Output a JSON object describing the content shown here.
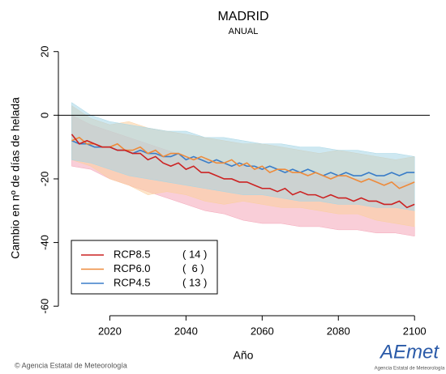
{
  "chart_data": {
    "type": "line",
    "title": "MADRID",
    "subtitle": "ANUAL",
    "x_label": "Año",
    "y_label": "Cambio en nº de días de helada",
    "xlim": [
      2006.5,
      2104
    ],
    "ylim": [
      -63,
      24
    ],
    "xticks": [
      2020,
      2040,
      2060,
      2080,
      2100
    ],
    "yticks": [
      -60,
      -40,
      -20,
      0,
      20
    ],
    "hline": 0,
    "x": [
      2010,
      2012,
      2014,
      2016,
      2018,
      2020,
      2022,
      2024,
      2026,
      2028,
      2030,
      2032,
      2034,
      2036,
      2038,
      2040,
      2042,
      2044,
      2046,
      2048,
      2050,
      2052,
      2054,
      2056,
      2058,
      2060,
      2062,
      2064,
      2066,
      2068,
      2070,
      2072,
      2074,
      2076,
      2078,
      2080,
      2082,
      2084,
      2086,
      2088,
      2090,
      2092,
      2094,
      2096,
      2098,
      2100
    ],
    "band_x": [
      2010,
      2015,
      2020,
      2025,
      2030,
      2035,
      2040,
      2045,
      2050,
      2055,
      2060,
      2065,
      2070,
      2075,
      2080,
      2085,
      2090,
      2095,
      2100
    ],
    "series": [
      {
        "name": "RCP8.5",
        "count_label": "( 14 )",
        "color": "#cc2222",
        "band_color": "#f4a6b8",
        "values": [
          -6,
          -9,
          -8,
          -9,
          -10,
          -10,
          -11,
          -11,
          -12,
          -12,
          -14,
          -13,
          -15,
          -16,
          -15,
          -17,
          -16,
          -18,
          -18,
          -19,
          -20,
          -20,
          -21,
          -21,
          -22,
          -23,
          -23,
          -24,
          -23,
          -25,
          -24,
          -25,
          -25,
          -26,
          -25,
          -26,
          -26,
          -27,
          -26,
          -27,
          -27,
          -28,
          -28,
          -27,
          -29,
          -28
        ],
        "band_lower": [
          -16,
          -17,
          -20,
          -22,
          -24,
          -26,
          -28,
          -30,
          -31,
          -33,
          -34,
          -34,
          -35,
          -35,
          -36,
          -36,
          -37,
          -37,
          -38
        ],
        "band_upper": [
          0,
          -3,
          -5,
          -7,
          -9,
          -11,
          -13,
          -14,
          -15,
          -16,
          -17,
          -18,
          -18,
          -19,
          -19,
          -20,
          -20,
          -21,
          -21
        ]
      },
      {
        "name": "RCP6.0",
        "count_label": "(  6 )",
        "color": "#ee8a3a",
        "band_color": "#fbcf9e",
        "values": [
          -8,
          -7,
          -9,
          -9,
          -10,
          -10,
          -9,
          -11,
          -11,
          -10,
          -12,
          -11,
          -13,
          -12,
          -12,
          -13,
          -14,
          -13,
          -14,
          -15,
          -15,
          -14,
          -16,
          -15,
          -17,
          -16,
          -18,
          -17,
          -17,
          -18,
          -18,
          -19,
          -18,
          -19,
          -20,
          -19,
          -19,
          -20,
          -21,
          -20,
          -21,
          -22,
          -21,
          -23,
          -22,
          -21
        ],
        "band_lower": [
          -14,
          -16,
          -20,
          -22,
          -25,
          -24,
          -25,
          -27,
          -28,
          -27,
          -28,
          -29,
          -29,
          -30,
          -31,
          -31,
          -33,
          -34,
          -35
        ],
        "band_upper": [
          3,
          -1,
          -3,
          -2,
          -4,
          -5,
          -6,
          -7,
          -8,
          -9,
          -9,
          -10,
          -11,
          -12,
          -11,
          -12,
          -13,
          -14,
          -13
        ]
      },
      {
        "name": "RCP4.5",
        "count_label": "( 13 )",
        "color": "#3a7dc8",
        "band_color": "#a6d6e6",
        "values": [
          -8,
          -9,
          -9,
          -10,
          -10,
          -10,
          -11,
          -11,
          -12,
          -11,
          -12,
          -12,
          -13,
          -13,
          -12,
          -14,
          -13,
          -14,
          -15,
          -14,
          -15,
          -16,
          -15,
          -16,
          -16,
          -17,
          -16,
          -17,
          -18,
          -17,
          -18,
          -17,
          -18,
          -19,
          -18,
          -19,
          -18,
          -19,
          -19,
          -18,
          -19,
          -19,
          -18,
          -19,
          -18,
          -18
        ],
        "band_lower": [
          -14,
          -15,
          -17,
          -19,
          -20,
          -21,
          -22,
          -23,
          -24,
          -25,
          -25,
          -26,
          -27,
          -27,
          -28,
          -28,
          -29,
          -29,
          -30
        ],
        "band_upper": [
          4,
          0,
          -2,
          -3,
          -4,
          -5,
          -5,
          -7,
          -7,
          -8,
          -9,
          -9,
          -10,
          -10,
          -11,
          -11,
          -12,
          -12,
          -13
        ]
      }
    ]
  },
  "footer": {
    "credit": "© Agencia Estatal de Meteorología"
  },
  "logo": {
    "name": "AEmet",
    "subtitle": "Agencia Estatal de Meteorología"
  }
}
